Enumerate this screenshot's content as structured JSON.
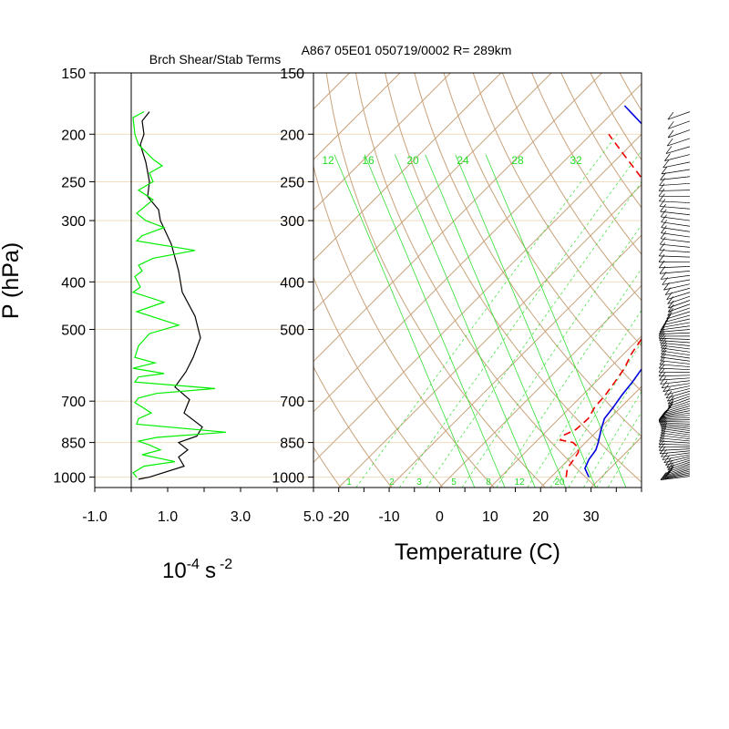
{
  "left_panel": {
    "title": "Brch Shear/Stab Terms",
    "unit_base": "10",
    "unit_exp": "-4",
    "unit_s": "s",
    "unit_exp2": "-2"
  },
  "skewt_panel": {
    "title": "A867 05E01 050719/0002 R= 289km",
    "xlabel": "Temperature (C)"
  },
  "shared": {
    "ylabel": "P (hPa)"
  },
  "colors": {
    "shear": "#000000",
    "stability": "#00ee00",
    "temperature": "#0000dd",
    "dewpoint": "#ee0000",
    "skew_grid": "#c8a27a",
    "mixing_ratio": "#33dd33"
  },
  "chart_data": [
    {
      "type": "line",
      "title": "Brch Shear/Stab Terms",
      "xlabel": "10-4 s-2",
      "ylabel": "P (hPa)",
      "xlim": [
        -1.0,
        5.0
      ],
      "ylim": [
        1050,
        150
      ],
      "y_scale": "log",
      "x_ticks": [
        "-1.0",
        "1.0",
        "3.0",
        "5.0"
      ],
      "y_ticks": [
        150,
        200,
        250,
        300,
        400,
        500,
        700,
        850,
        1000
      ],
      "series": [
        {
          "color": "#000000",
          "points": [
            [
              0.5,
              180
            ],
            [
              0.3,
              188
            ],
            [
              0.35,
              200
            ],
            [
              0.25,
              210
            ],
            [
              0.4,
              228
            ],
            [
              0.5,
              250
            ],
            [
              0.45,
              268
            ],
            [
              0.75,
              285
            ],
            [
              0.8,
              300
            ],
            [
              1.1,
              335
            ],
            [
              1.3,
              380
            ],
            [
              1.4,
              420
            ],
            [
              1.75,
              470
            ],
            [
              1.9,
              520
            ],
            [
              1.7,
              570
            ],
            [
              1.5,
              610
            ],
            [
              1.2,
              655
            ],
            [
              1.6,
              695
            ],
            [
              1.45,
              740
            ],
            [
              1.95,
              790
            ],
            [
              1.8,
              825
            ],
            [
              1.3,
              850
            ],
            [
              1.55,
              880
            ],
            [
              1.3,
              910
            ],
            [
              1.45,
              950
            ],
            [
              0.5,
              1000
            ],
            [
              0.2,
              1010
            ]
          ]
        },
        {
          "color": "#00ee00",
          "points": [
            [
              0.35,
              180
            ],
            [
              0.05,
              185
            ],
            [
              0.1,
              200
            ],
            [
              0.2,
              210
            ],
            [
              0.6,
              225
            ],
            [
              0.85,
              232
            ],
            [
              0.5,
              240
            ],
            [
              0.6,
              250
            ],
            [
              0.2,
              260
            ],
            [
              0.6,
              272
            ],
            [
              0.15,
              290
            ],
            [
              0.4,
              300
            ],
            [
              0.9,
              310
            ],
            [
              0.3,
              322
            ],
            [
              0.15,
              330
            ],
            [
              1.75,
              345
            ],
            [
              0.6,
              358
            ],
            [
              0.2,
              370
            ],
            [
              0.3,
              380
            ],
            [
              0.1,
              390
            ],
            [
              0.25,
              410
            ],
            [
              0.05,
              420
            ],
            [
              0.9,
              440
            ],
            [
              0.15,
              460
            ],
            [
              1.3,
              490
            ],
            [
              0.5,
              510
            ],
            [
              0.2,
              540
            ],
            [
              0.1,
              570
            ],
            [
              0.65,
              585
            ],
            [
              0.05,
              600
            ],
            [
              0.9,
              615
            ],
            [
              0.2,
              625
            ],
            [
              0.1,
              640
            ],
            [
              2.3,
              660
            ],
            [
              0.7,
              675
            ],
            [
              0.2,
              690
            ],
            [
              0.1,
              705
            ],
            [
              0.3,
              720
            ],
            [
              0.55,
              740
            ],
            [
              0.2,
              760
            ],
            [
              0.15,
              780
            ],
            [
              2.6,
              810
            ],
            [
              0.7,
              830
            ],
            [
              0.2,
              845
            ],
            [
              0.5,
              860
            ],
            [
              0.8,
              880
            ],
            [
              0.3,
              900
            ],
            [
              1.2,
              930
            ],
            [
              0.35,
              950
            ],
            [
              0.05,
              980
            ],
            [
              0.15,
              1000
            ]
          ]
        }
      ]
    },
    {
      "type": "line",
      "title": "A867 05E01 050719/0002 R= 289km",
      "xlabel": "Temperature (C)",
      "ylabel": "P (hPa)",
      "xlim": [
        -25,
        40
      ],
      "ylim": [
        1050,
        150
      ],
      "y_scale": "log",
      "skew": true,
      "x_ticks": [
        -20,
        -10,
        0,
        10,
        20,
        30
      ],
      "y_ticks": [
        150,
        200,
        250,
        300,
        400,
        500,
        700,
        850,
        1000
      ],
      "mixing_ratio_labels_top": [
        "12",
        "16",
        "20",
        "24",
        "28",
        "32"
      ],
      "mixing_ratio_labels_bottom": [
        "1",
        "2",
        "3",
        "5",
        "8",
        "12",
        "20"
      ],
      "series": [
        {
          "color": "#0000dd",
          "points": [
            [
              27.5,
              1000
            ],
            [
              25.0,
              960
            ],
            [
              24.0,
              920
            ],
            [
              23.5,
              880
            ],
            [
              22.5,
              850
            ],
            [
              20.5,
              800
            ],
            [
              19.0,
              760
            ],
            [
              18.5,
              720
            ],
            [
              17.8,
              680
            ],
            [
              17.3,
              640
            ],
            [
              16.5,
              600
            ],
            [
              15.5,
              560
            ],
            [
              14.5,
              520
            ],
            [
              14.0,
              500
            ],
            [
              12.5,
              460
            ],
            [
              11.0,
              420
            ],
            [
              9.5,
              400
            ],
            [
              6.5,
              360
            ],
            [
              2.0,
              320
            ],
            [
              -0.5,
              300
            ],
            [
              -7.0,
              270
            ],
            [
              -12.0,
              250
            ],
            [
              -21.0,
              220
            ],
            [
              -28.0,
              200
            ],
            [
              -39.0,
              175
            ]
          ]
        },
        {
          "color": "#ee0000",
          "dashed": true,
          "points": [
            [
              23.0,
              1000
            ],
            [
              21.5,
              960
            ],
            [
              21.0,
              920
            ],
            [
              20.5,
              890
            ],
            [
              19.5,
              870
            ],
            [
              17.5,
              850
            ],
            [
              14.5,
              840
            ],
            [
              14.3,
              820
            ],
            [
              15.5,
              800
            ],
            [
              15.8,
              760
            ],
            [
              14.8,
              720
            ],
            [
              14.5,
              680
            ],
            [
              13.8,
              640
            ],
            [
              13.0,
              600
            ],
            [
              11.5,
              560
            ],
            [
              10.5,
              520
            ],
            [
              9.8,
              500
            ],
            [
              7.5,
              460
            ],
            [
              5.5,
              430
            ],
            [
              3.5,
              400
            ],
            [
              0.0,
              370
            ],
            [
              -5.0,
              340
            ],
            [
              -9.5,
              310
            ],
            [
              -12.0,
              295
            ],
            [
              -17.0,
              270
            ],
            [
              -20.0,
              250
            ],
            [
              -29.5,
              220
            ],
            [
              -36.5,
              200
            ]
          ]
        }
      ]
    }
  ]
}
